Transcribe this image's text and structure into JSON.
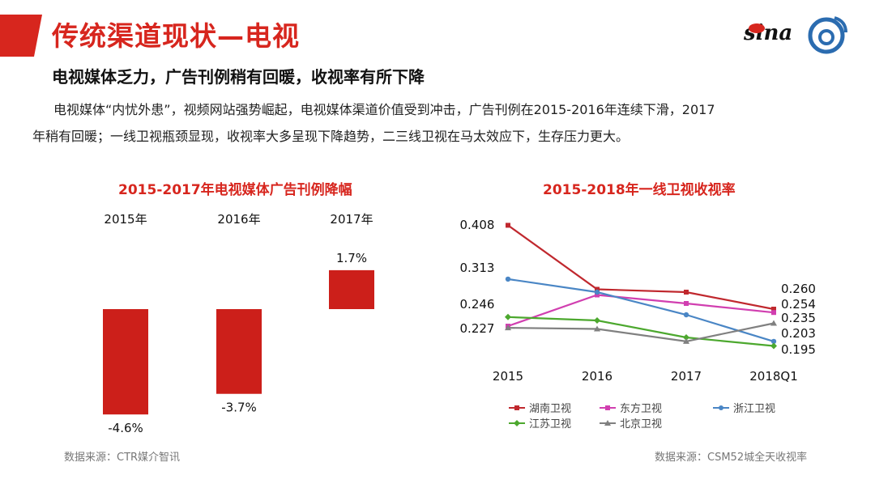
{
  "header": {
    "title": "传统渠道现状—电视",
    "subtitle": "电视媒体乏力，广告刊例稍有回暖，收视率有所下降",
    "paragraph_line1": "电视媒体“内忧外患”，视频网站强势崛起，电视媒体渠道价值受到冲击，广告刊例在2015-2016年连续下滑，2017",
    "paragraph_line2": "年稍有回暖；一线卫视瓶颈显现，收视率大多呈现下降趋势，二三线卫视在马太效应下，生存压力更大。",
    "logo_text": "sina",
    "accent_color": "#d7261e"
  },
  "chart_data": [
    {
      "type": "bar",
      "title": "2015-2017年电视媒体广告刊例降幅",
      "categories": [
        "2015年",
        "2016年",
        "2017年"
      ],
      "values": [
        -4.6,
        -3.7,
        1.7
      ],
      "value_labels": [
        "-4.6%",
        "-3.7%",
        "1.7%"
      ],
      "color": "#cc1f1a",
      "source": "数据来源：CTR媒介智讯"
    },
    {
      "type": "line",
      "title": "2015-2018年一线卫视收视率",
      "categories": [
        "2015",
        "2016",
        "2017",
        "2018Q1"
      ],
      "ylim": [
        0.17,
        0.42
      ],
      "series": [
        {
          "name": "湖南卫视",
          "values": [
            0.408,
            0.295,
            0.29,
            0.26
          ],
          "color": "#c0282e",
          "marker": "square"
        },
        {
          "name": "东方卫视",
          "values": [
            0.23,
            0.285,
            0.27,
            0.254
          ],
          "color": "#d13fb0",
          "marker": "square"
        },
        {
          "name": "浙江卫视",
          "values": [
            0.313,
            0.29,
            0.25,
            0.203
          ],
          "color": "#4a86c5",
          "marker": "circle"
        },
        {
          "name": "江苏卫视",
          "values": [
            0.246,
            0.24,
            0.21,
            0.195
          ],
          "color": "#4ca82e",
          "marker": "diamond"
        },
        {
          "name": "北京卫视",
          "values": [
            0.227,
            0.225,
            0.203,
            0.235
          ],
          "color": "#808080",
          "marker": "triangle"
        }
      ],
      "start_labels": [
        "0.408",
        "0.313",
        "0.246",
        "0.227"
      ],
      "end_labels": [
        "0.260",
        "0.254",
        "0.235",
        "0.203",
        "0.195"
      ],
      "source": "数据来源：CSM52城全天收视率"
    }
  ]
}
